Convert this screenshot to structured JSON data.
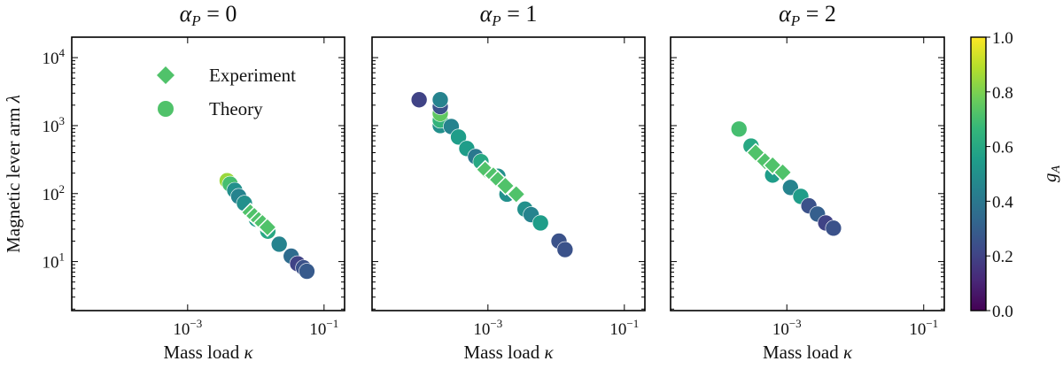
{
  "chart_data": [
    {
      "type": "scatter",
      "title": "αP = 0",
      "title_parts": {
        "symbol": "α",
        "sub": "P",
        "rest": " = 0"
      },
      "xlabel": "Mass load κ",
      "ylabel": "Magnetic lever arm λ",
      "xscale": "log",
      "yscale": "log",
      "xlim": [
        2e-05,
        0.2
      ],
      "ylim": [
        1.9,
        20000
      ],
      "xticks": [
        "10^-3",
        "10^-1"
      ],
      "yticks": [
        "10^1",
        "10^2",
        "10^3",
        "10^4"
      ],
      "legend": {
        "position": "top-center",
        "entries": [
          "Experiment",
          "Theory"
        ]
      },
      "series": [
        {
          "name": "Theory",
          "marker": "circle",
          "x": [
            0.0038,
            0.0042,
            0.0049,
            0.0056,
            0.0068,
            0.0102,
            0.015,
            0.022,
            0.033,
            0.041,
            0.05,
            0.056
          ],
          "y": [
            155,
            138,
            112,
            91,
            72,
            42,
            28,
            18,
            12,
            9.3,
            8.1,
            7.2
          ],
          "g": [
            0.85,
            0.7,
            0.5,
            0.45,
            0.5,
            0.55,
            0.6,
            0.45,
            0.35,
            0.2,
            0.25,
            0.28
          ]
        },
        {
          "name": "Experiment",
          "marker": "diamond",
          "x": [
            0.0083,
            0.0095,
            0.011,
            0.0125,
            0.0148
          ],
          "y": [
            53,
            47,
            41,
            37,
            32
          ],
          "g": [
            0.72,
            0.72,
            0.72,
            0.72,
            0.72
          ]
        }
      ]
    },
    {
      "type": "scatter",
      "title": "αP = 1",
      "title_parts": {
        "symbol": "α",
        "sub": "P",
        "rest": " = 1"
      },
      "xlabel": "Mass load κ",
      "xscale": "log",
      "yscale": "log",
      "xlim": [
        2e-05,
        0.2
      ],
      "ylim": [
        1.9,
        20000
      ],
      "xticks": [
        "10^-3",
        "10^-1"
      ],
      "series": [
        {
          "name": "Theory",
          "marker": "circle",
          "x": [
            9.8e-05,
            0.0002,
            0.0002,
            0.0002,
            0.0002,
            0.0002,
            0.00029,
            0.00037,
            0.00049,
            0.00066,
            0.00079,
            0.0014,
            0.0019,
            0.0035,
            0.0043,
            0.0059,
            0.011,
            0.0135
          ],
          "y": [
            2400,
            1000,
            1200,
            1500,
            1900,
            2400,
            970,
            680,
            460,
            350,
            295,
            180,
            98,
            59,
            49,
            37,
            20,
            15
          ],
          "g": [
            0.2,
            0.5,
            0.65,
            0.75,
            0.25,
            0.45,
            0.45,
            0.55,
            0.55,
            0.4,
            0.6,
            0.5,
            0.5,
            0.5,
            0.45,
            0.55,
            0.25,
            0.25
          ]
        },
        {
          "name": "Experiment",
          "marker": "diamond",
          "x": [
            0.00091,
            0.0012,
            0.0014,
            0.0018,
            0.0026
          ],
          "y": [
            225,
            185,
            160,
            130,
            98
          ],
          "g": [
            0.72,
            0.72,
            0.72,
            0.72,
            0.72
          ]
        }
      ]
    },
    {
      "type": "scatter",
      "title": "αP = 2",
      "title_parts": {
        "symbol": "α",
        "sub": "P",
        "rest": " = 2"
      },
      "xlabel": "Mass load κ",
      "xscale": "log",
      "yscale": "log",
      "xlim": [
        2e-05,
        0.2
      ],
      "ylim": [
        1.9,
        20000
      ],
      "xticks": [
        "10^-3",
        "10^-1"
      ],
      "series": [
        {
          "name": "Theory",
          "marker": "circle",
          "x": [
            0.0002,
            0.0003,
            0.00062,
            0.00113,
            0.0016,
            0.0021,
            0.0028,
            0.0037,
            0.0048
          ],
          "y": [
            890,
            500,
            187,
            123,
            91,
            66,
            50,
            37,
            31
          ],
          "g": [
            0.7,
            0.6,
            0.55,
            0.45,
            0.55,
            0.25,
            0.3,
            0.2,
            0.25
          ]
        },
        {
          "name": "Experiment",
          "marker": "diamond",
          "x": [
            0.00035,
            0.00048,
            0.00062,
            0.00087
          ],
          "y": [
            400,
            300,
            260,
            205
          ],
          "g": [
            0.72,
            0.72,
            0.72,
            0.72
          ]
        }
      ]
    }
  ],
  "colorbar": {
    "label": "g",
    "label_sub": "A",
    "colormap": "viridis",
    "range": [
      0.0,
      1.0
    ],
    "ticks": [
      "0.0",
      "0.2",
      "0.4",
      "0.6",
      "0.8",
      "1.0"
    ]
  }
}
